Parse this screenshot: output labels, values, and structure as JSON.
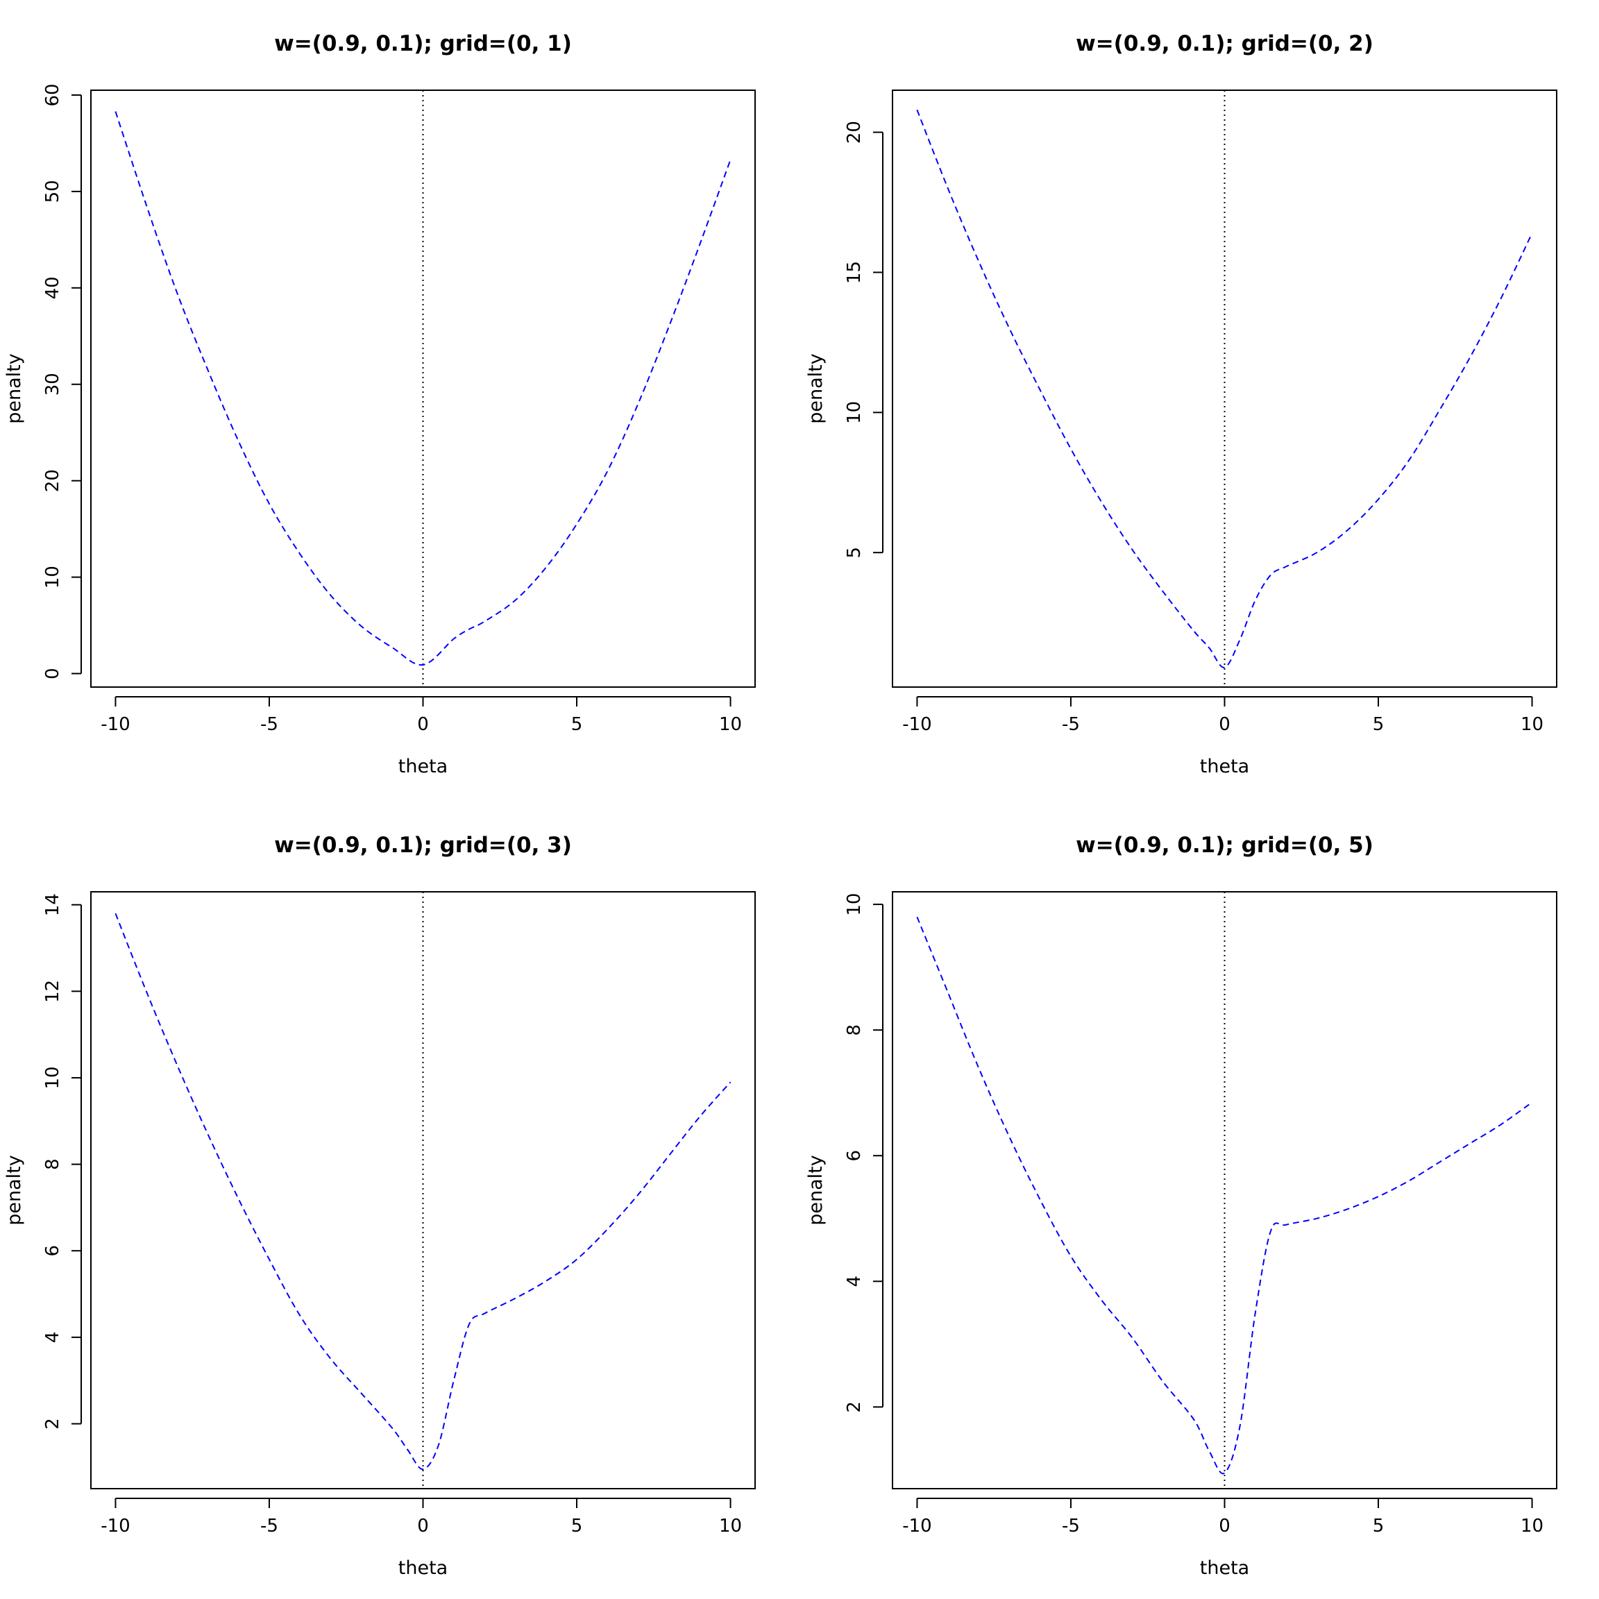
{
  "chart_data": [
    {
      "type": "line",
      "title": "w=(0.9, 0.1); grid=(0, 1)",
      "xlabel": "theta",
      "ylabel": "penalty",
      "xlim": [
        -10.8,
        10.8
      ],
      "ylim": [
        -1.4,
        60.5
      ],
      "xticks": [
        -10,
        -5,
        0,
        5,
        10
      ],
      "yticks": [
        0,
        10,
        20,
        30,
        40,
        50,
        60
      ],
      "grid": false,
      "vline": 0,
      "line_color": "#0000ff",
      "x": [
        -10,
        -9,
        -8,
        -7,
        -6,
        -5,
        -4,
        -3,
        -2,
        -1,
        0,
        1,
        1.5,
        2,
        3,
        4,
        5,
        6,
        7,
        8,
        9,
        10
      ],
      "y": [
        58.3,
        48.6,
        39.5,
        31.5,
        24.1,
        17.6,
        12.4,
        8.1,
        4.9,
        2.7,
        0.9,
        3.6,
        4.6,
        5.4,
        7.6,
        11.0,
        15.5,
        21.0,
        28.0,
        36.0,
        44.5,
        53.3
      ]
    },
    {
      "type": "line",
      "title": "w=(0.9, 0.1); grid=(0, 2)",
      "xlabel": "theta",
      "ylabel": "penalty",
      "xlim": [
        -10.8,
        10.8
      ],
      "ylim": [
        0.2,
        21.5
      ],
      "xticks": [
        -10,
        -5,
        0,
        5,
        10
      ],
      "yticks": [
        5,
        10,
        15,
        20
      ],
      "grid": false,
      "vline": 0,
      "line_color": "#0000ff",
      "x": [
        -10,
        -9,
        -8,
        -7,
        -6,
        -5,
        -4,
        -3,
        -2,
        -1,
        -0.5,
        0,
        0.5,
        1,
        1.5,
        2,
        3,
        4,
        5,
        6,
        7,
        8,
        9,
        10
      ],
      "y": [
        20.8,
        18.0,
        15.4,
        13.0,
        10.8,
        8.7,
        6.8,
        5.1,
        3.6,
        2.2,
        1.6,
        0.9,
        1.9,
        3.3,
        4.2,
        4.5,
        5.0,
        5.8,
        6.9,
        8.3,
        10.1,
        12.0,
        14.1,
        16.4
      ]
    },
    {
      "type": "line",
      "title": "w=(0.9, 0.1); grid=(0, 3)",
      "xlabel": "theta",
      "ylabel": "penalty",
      "xlim": [
        -10.8,
        10.8
      ],
      "ylim": [
        0.5,
        14.3
      ],
      "xticks": [
        -10,
        -5,
        0,
        5,
        10
      ],
      "yticks": [
        2,
        4,
        6,
        8,
        10,
        12,
        14
      ],
      "grid": false,
      "vline": 0,
      "line_color": "#0000ff",
      "x": [
        -10,
        -9,
        -8,
        -7,
        -6,
        -5,
        -4,
        -3,
        -2,
        -1,
        -0.5,
        0,
        0.5,
        1,
        1.5,
        2,
        3,
        4,
        5,
        6,
        7,
        8,
        9,
        10
      ],
      "y": [
        13.8,
        12.0,
        10.3,
        8.7,
        7.2,
        5.8,
        4.5,
        3.5,
        2.7,
        1.9,
        1.4,
        0.95,
        1.5,
        3.0,
        4.3,
        4.55,
        4.9,
        5.3,
        5.8,
        6.5,
        7.3,
        8.2,
        9.1,
        9.9
      ]
    },
    {
      "type": "line",
      "title": "w=(0.9, 0.1); grid=(0, 5)",
      "xlabel": "theta",
      "ylabel": "penalty",
      "xlim": [
        -10.8,
        10.8
      ],
      "ylim": [
        0.7,
        10.2
      ],
      "xticks": [
        -10,
        -5,
        0,
        5,
        10
      ],
      "yticks": [
        2,
        4,
        6,
        8,
        10
      ],
      "grid": false,
      "vline": 0,
      "line_color": "#0000ff",
      "x": [
        -10,
        -9,
        -8,
        -7,
        -6,
        -5,
        -4,
        -3,
        -2,
        -1,
        -0.5,
        0,
        0.5,
        1,
        1.5,
        2,
        3,
        4,
        5,
        6,
        7,
        8,
        9,
        10
      ],
      "y": [
        9.8,
        8.6,
        7.4,
        6.3,
        5.3,
        4.4,
        3.7,
        3.1,
        2.4,
        1.8,
        1.3,
        0.95,
        1.7,
        3.5,
        4.8,
        4.9,
        5.0,
        5.15,
        5.35,
        5.6,
        5.9,
        6.2,
        6.5,
        6.85
      ]
    }
  ]
}
